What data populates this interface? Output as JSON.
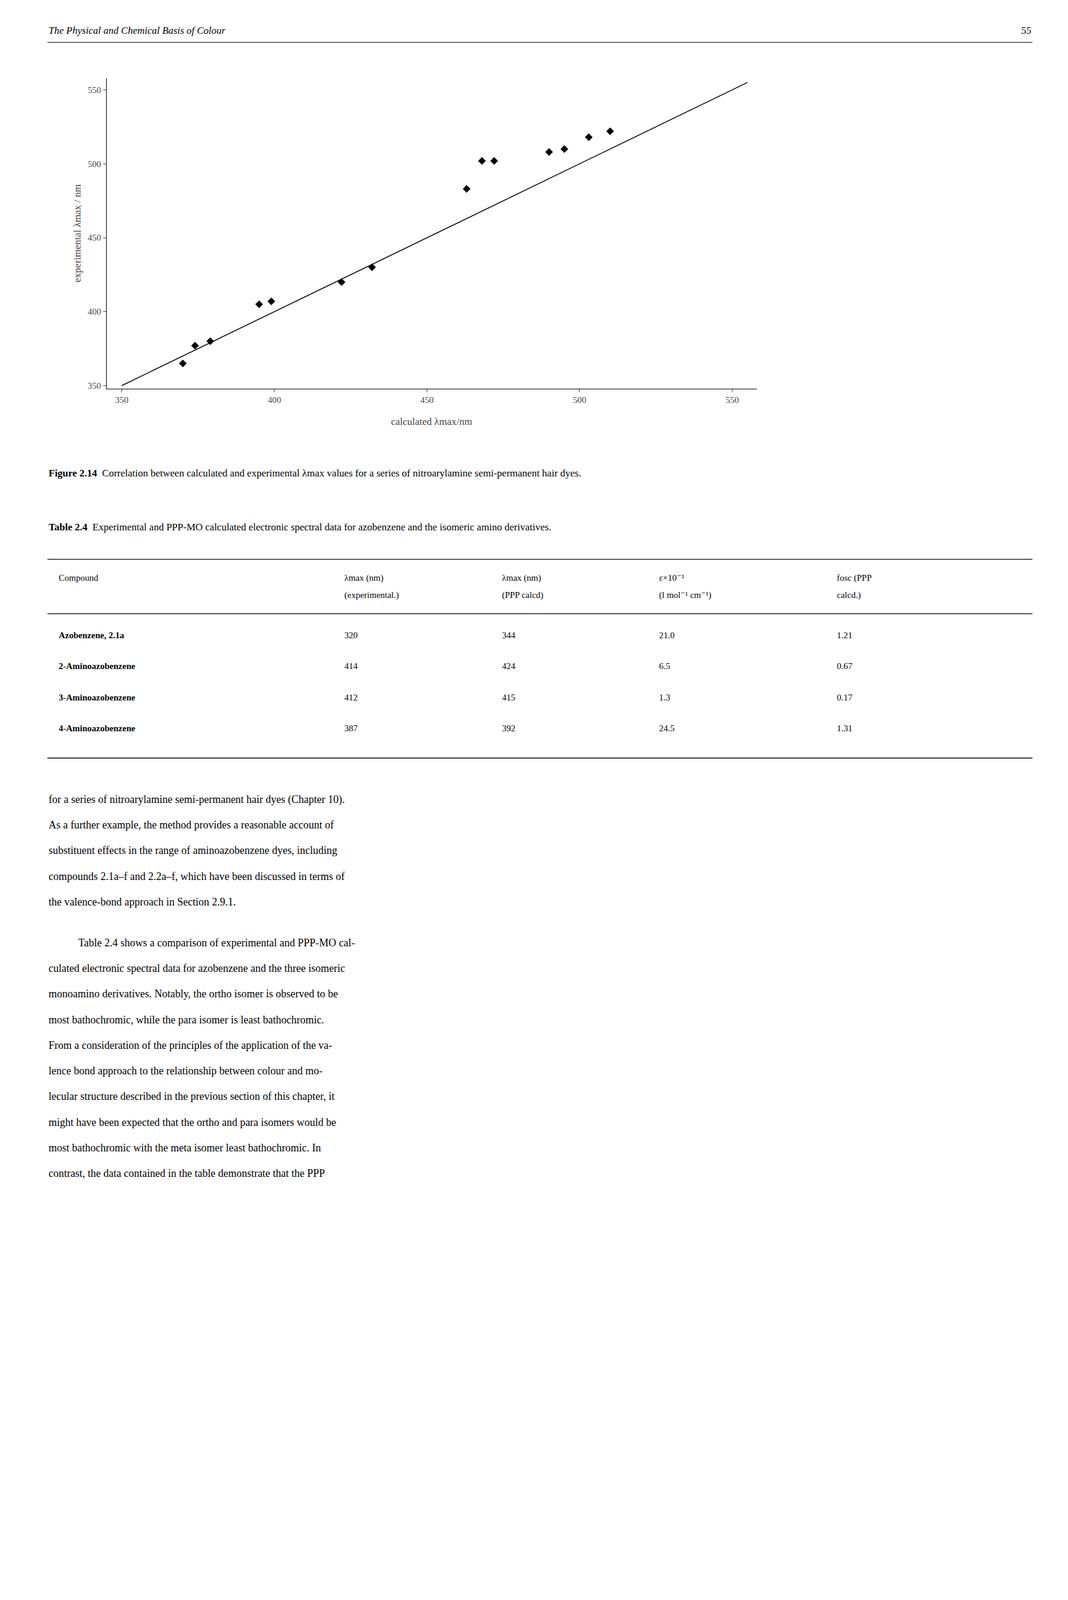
{
  "chart_data": {
    "type": "scatter",
    "x_label": "calculated λmax/nm",
    "y_label": "experimental λmax / nm",
    "series": [
      {
        "type": "scatter",
        "marker": "diamond",
        "color": "#000000",
        "x": [
          370,
          374,
          379,
          395,
          399,
          422,
          432,
          463,
          468,
          472,
          490,
          495,
          503,
          510
        ],
        "values": [
          365,
          377,
          380,
          405,
          407,
          420,
          430,
          483,
          502,
          502,
          508,
          510,
          518,
          522
        ]
      },
      {
        "type": "line",
        "line_style": "solid",
        "color": "#000000",
        "x": [
          350,
          555
        ],
        "values": [
          350,
          555
        ]
      }
    ],
    "xlim": [
      345,
      558
    ],
    "ylim": [
      348,
      558
    ],
    "xticks": [
      350,
      400,
      450,
      500,
      550
    ],
    "yticks": [
      350,
      400,
      450,
      500,
      550
    ],
    "grid": false
  },
  "header": "The Physical and Chemical Basis of Colour",
  "page_number": "55",
  "caption": {
    "label": "Figure 2.14",
    "text": "Correlation between calculated and experimental λmax values for a series of nitroarylamine semi-permanent hair dyes."
  },
  "table": {
    "label": "Table 2.4",
    "title": "Experimental and PPP-MO calculated electronic spectral data for azobenzene and the isomeric amino derivatives.",
    "columns": [
      [
        "Compound"
      ],
      [
        "λmax (nm)",
        "(experimental.)"
      ],
      [
        "λmax (nm)",
        "(PPP calcd)"
      ],
      [
        "ε×10⁻³",
        "(l mol⁻¹ cm⁻¹)"
      ],
      [
        "fosc (PPP",
        "calcd.)"
      ]
    ],
    "rows": [
      [
        "Azobenzene, 2.1a",
        "320",
        "344",
        "21.0",
        "1.21"
      ],
      [
        "2-Aminoazobenzene",
        "414",
        "424",
        "6.5",
        "0.67"
      ],
      [
        "3-Aminoazobenzene",
        "412",
        "415",
        "1.3",
        "0.17"
      ],
      [
        "4-Aminoazobenzene",
        "387",
        "392",
        "24.5",
        "1.31"
      ]
    ]
  },
  "body": [
    [
      "for a series of nitroarylamine semi-permanent hair dyes (Chapter 10).",
      "As a further example, the method provides a reasonable account of",
      "substituent effects in the range of aminoazobenzene dyes, including",
      "compounds 2.1a–f and 2.2a–f, which have been discussed in terms of",
      "the valence-bond approach in Section 2.9.1."
    ],
    [
      "Table 2.4 shows a comparison of experimental and PPP-MO cal-",
      "culated electronic spectral data for azobenzene and the three isomeric",
      "monoamino derivatives. Notably, the ortho isomer is observed to be",
      "most bathochromic, while the para isomer is least bathochromic.",
      "From a consideration of the principles of the application of the va-",
      "lence bond approach to the relationship between colour and mo-",
      "lecular structure described in the previous section of this chapter, it",
      "might have been expected that the ortho and para isomers would be",
      "most bathochromic with the meta isomer least bathochromic. In",
      "contrast, the data contained in the table demonstrate that the PPP"
    ]
  ]
}
